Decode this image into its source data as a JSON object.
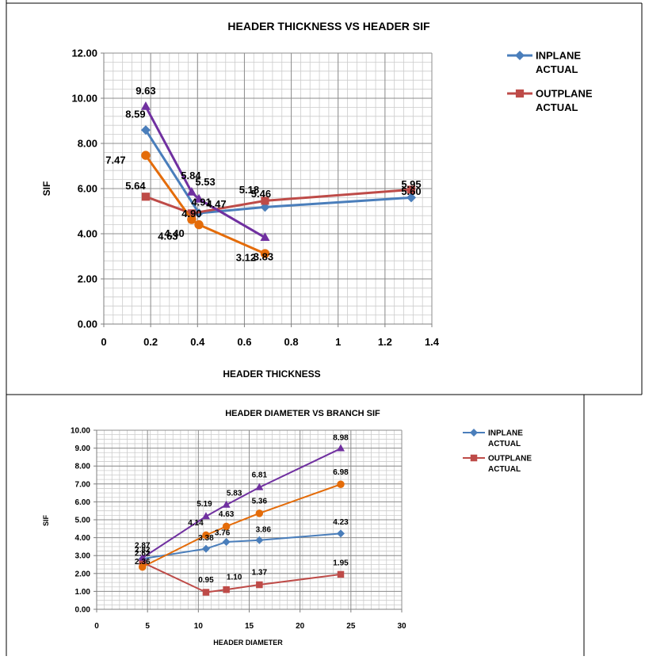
{
  "chart_data": [
    {
      "type": "line",
      "title": "HEADER THICKNESS VS HEADER SIF",
      "xlabel": "HEADER THICKNESS",
      "ylabel": "SIF",
      "xlim": [
        0,
        1.4
      ],
      "ylim": [
        0,
        12
      ],
      "x_ticks": [
        "0",
        "0.2",
        "0.4",
        "0.6",
        "0.8",
        "1",
        "1.2",
        "1.4"
      ],
      "y_ticks": [
        "0.00",
        "2.00",
        "4.00",
        "6.00",
        "8.00",
        "10.00",
        "12.00"
      ],
      "grid": true,
      "legend_position": "right",
      "series": [
        {
          "name": "INPLANE ACTUAL",
          "color": "#4a7ebb",
          "marker": "diamond",
          "points": [
            [
              0.179,
              8.59
            ],
            [
              0.406,
              4.91
            ],
            [
              0.688,
              5.18
            ],
            [
              1.312,
              5.6
            ]
          ],
          "labels": [
            "8.59",
            "4.91",
            "5.18",
            "5.60"
          ]
        },
        {
          "name": "OUTPLANE ACTUAL",
          "color": "#be4b48",
          "marker": "square",
          "points": [
            [
              0.179,
              5.64
            ],
            [
              0.375,
              4.9
            ],
            [
              0.688,
              5.46
            ],
            [
              1.312,
              5.95
            ]
          ],
          "labels": [
            "5.64",
            "4.90",
            "5.46",
            "5.95"
          ]
        },
        {
          "name": "",
          "color": "#7030a0",
          "marker": "triangle",
          "points": [
            [
              0.179,
              9.63
            ],
            [
              0.375,
              5.84
            ],
            [
              0.406,
              5.53
            ],
            [
              0.688,
              3.83
            ]
          ],
          "labels": [
            "9.63",
            "5.84",
            "5.53",
            "3.83"
          ]
        },
        {
          "name": "",
          "color": "#e46c0a",
          "marker": "circle",
          "points": [
            [
              0.179,
              7.47
            ],
            [
              0.375,
              4.63
            ],
            [
              0.406,
              4.4
            ],
            [
              0.688,
              3.12
            ]
          ],
          "labels": [
            "7.47",
            "4.63",
            "4.40",
            "3.12"
          ]
        }
      ],
      "extra_labels": [
        "4.47"
      ]
    },
    {
      "type": "line",
      "title": "HEADER DIAMETER VS BRANCH SIF",
      "xlabel": "HEADER DIAMETER",
      "ylabel": "SIF",
      "xlim": [
        0,
        30
      ],
      "ylim": [
        0,
        10
      ],
      "x_ticks": [
        "0",
        "5",
        "10",
        "15",
        "20",
        "25",
        "30"
      ],
      "y_ticks": [
        "0.00",
        "1.00",
        "2.00",
        "3.00",
        "4.00",
        "5.00",
        "6.00",
        "7.00",
        "8.00",
        "9.00",
        "10.00"
      ],
      "grid": true,
      "legend_position": "right",
      "series": [
        {
          "name": "INPLANE ACTUAL",
          "color": "#4a7ebb",
          "marker": "diamond",
          "points": [
            [
              4.5,
              2.82
            ],
            [
              10.75,
              3.38
            ],
            [
              12.75,
              3.76
            ],
            [
              16,
              3.86
            ],
            [
              24,
              4.23
            ]
          ],
          "labels": [
            "2.82",
            "3.38",
            "3.76",
            "3.86",
            "4.23"
          ]
        },
        {
          "name": "OUTPLANE ACTUAL",
          "color": "#be4b48",
          "marker": "square",
          "points": [
            [
              4.5,
              2.62
            ],
            [
              10.75,
              0.95
            ],
            [
              12.75,
              1.1
            ],
            [
              16,
              1.37
            ],
            [
              24,
              1.95
            ]
          ],
          "labels": [
            "2.62",
            "0.95",
            "1.10",
            "1.37",
            "1.95"
          ]
        },
        {
          "name": "",
          "color": "#7030a0",
          "marker": "triangle",
          "points": [
            [
              4.5,
              2.87
            ],
            [
              10.75,
              5.19
            ],
            [
              12.75,
              5.83
            ],
            [
              16,
              6.81
            ],
            [
              24,
              8.98
            ]
          ],
          "labels": [
            "2.87",
            "5.19",
            "5.83",
            "6.81",
            "8.98"
          ]
        },
        {
          "name": "",
          "color": "#e46c0a",
          "marker": "circle",
          "points": [
            [
              4.5,
              2.36
            ],
            [
              10.75,
              4.14
            ],
            [
              12.75,
              4.63
            ],
            [
              16,
              5.36
            ],
            [
              24,
              6.98
            ]
          ],
          "labels": [
            "2.36",
            "4.14",
            "4.63",
            "5.36",
            "6.98"
          ]
        }
      ]
    }
  ]
}
